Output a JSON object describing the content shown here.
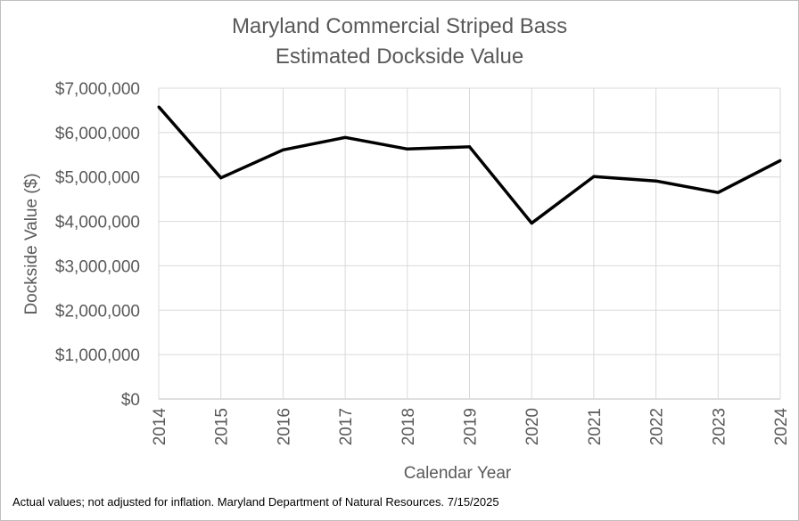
{
  "chart_data": {
    "type": "line",
    "title": "Maryland Commercial Striped Bass",
    "subtitle": "Estimated Dockside Value",
    "xlabel": "Calendar Year",
    "ylabel": "Dockside Value ($)",
    "ylim": [
      0,
      7000000
    ],
    "yticks": [
      0,
      1000000,
      2000000,
      3000000,
      4000000,
      5000000,
      6000000,
      7000000
    ],
    "ytick_labels": [
      "$0",
      "$1,000,000",
      "$2,000,000",
      "$3,000,000",
      "$4,000,000",
      "$5,000,000",
      "$6,000,000",
      "$7,000,000"
    ],
    "x": [
      "2014",
      "2015",
      "2016",
      "2017",
      "2018",
      "2019",
      "2020",
      "2021",
      "2022",
      "2023",
      "2024"
    ],
    "series": [
      {
        "values": [
          6580000,
          4980000,
          5610000,
          5890000,
          5630000,
          5680000,
          3960000,
          5010000,
          4910000,
          4650000,
          5370000
        ]
      }
    ],
    "grid": "horizontal",
    "legend": "none",
    "line_color": "#000000",
    "grid_color": "#d9d9d9",
    "text_color": "#595959"
  },
  "footnote": "Actual values; not adjusted for inflation. Maryland Department of Natural Resources. 7/15/2025"
}
